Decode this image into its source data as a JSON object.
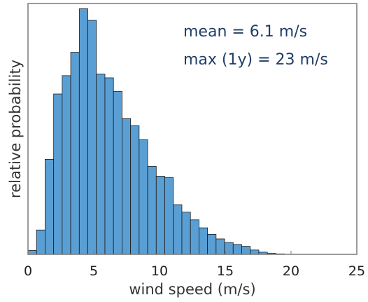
{
  "chart_data": {
    "type": "bar",
    "title": "",
    "xlabel": "wind speed (m/s)",
    "ylabel": "relative probability",
    "xlim": [
      0,
      25
    ],
    "ylim": [
      0,
      0.104
    ],
    "x_ticks": [
      "0",
      "5",
      "10",
      "15",
      "20",
      "25"
    ],
    "y_ticks_shown": false,
    "grid": false,
    "bar_color": "#5a9fd4",
    "bar_edge_color": "#1a1a1a",
    "bin_width": 0.65,
    "x": [
      0.325,
      0.975,
      1.625,
      2.275,
      2.925,
      3.575,
      4.225,
      4.875,
      5.525,
      6.175,
      6.825,
      7.475,
      8.125,
      8.775,
      9.425,
      10.075,
      10.725,
      11.375,
      12.025,
      12.675,
      13.325,
      13.975,
      14.625,
      15.275,
      15.925,
      16.575,
      17.225,
      17.875,
      18.525,
      19.175
    ],
    "values": [
      0.0016,
      0.0101,
      0.0394,
      0.0665,
      0.0741,
      0.0838,
      0.1018,
      0.097,
      0.0747,
      0.0732,
      0.0676,
      0.0563,
      0.0533,
      0.0475,
      0.0365,
      0.0324,
      0.0318,
      0.0206,
      0.0175,
      0.0143,
      0.011,
      0.0083,
      0.0064,
      0.0049,
      0.0041,
      0.0033,
      0.0018,
      0.0009,
      0.0004,
      0.0002
    ],
    "annotations": [
      "mean = 6.1 m/s",
      "max (1y) = 23 m/s"
    ]
  }
}
